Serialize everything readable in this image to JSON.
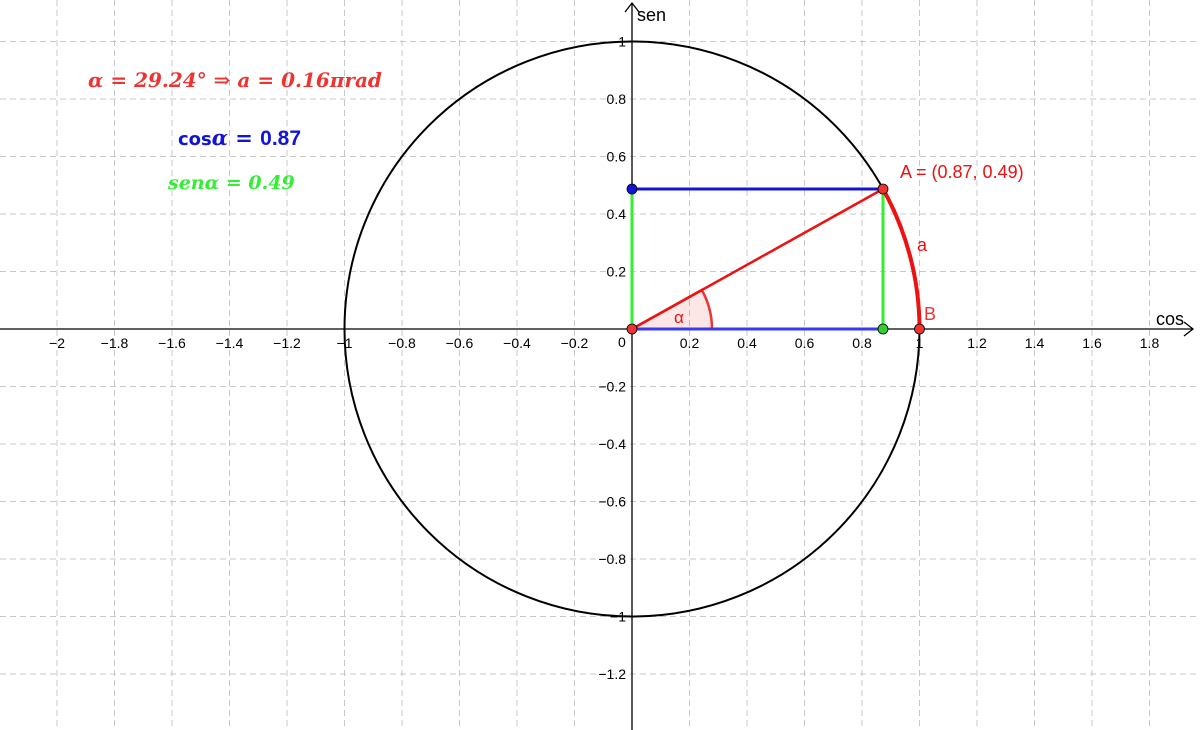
{
  "axes": {
    "x_label": "cos",
    "y_label": "sen",
    "x_ticks": [
      "−2",
      "−1.8",
      "−1.6",
      "−1.4",
      "−1.2",
      "−1",
      "−0.8",
      "−0.6",
      "−0.4",
      "−0.2",
      "0.2",
      "0.4",
      "0.6",
      "0.8",
      "1",
      "1.2",
      "1.4",
      "1.6",
      "1.8"
    ],
    "y_ticks": [
      "1",
      "0.8",
      "0.6",
      "0.4",
      "0.2",
      "−0.2",
      "−0.4",
      "−0.6",
      "−0.8",
      "−1",
      "−1.2"
    ],
    "origin_label": "0"
  },
  "angle_info": {
    "alpha_sym": "α",
    "equals1": " = ",
    "alpha_deg": "29.24°",
    "implies": " ⇒ ",
    "a_sym": "a",
    "equals2": " = ",
    "a_rad": "0.16πrad"
  },
  "cos_info": {
    "word": "cos",
    "alpha_sym": "α",
    "equals": " = ",
    "value": "0.87"
  },
  "sin_info": {
    "word": "sen",
    "alpha_sym": "α",
    "equals": " = ",
    "value": "0.49"
  },
  "point_a_label": "A = (0.87, 0.49)",
  "point_b_label": "B",
  "arc_label": "a",
  "angle_label": "α",
  "colors": {
    "red": "#ee3333",
    "blue": "#1414d6",
    "green": "#33ee33",
    "black": "#000000",
    "grid": "#c8c8c8"
  }
}
